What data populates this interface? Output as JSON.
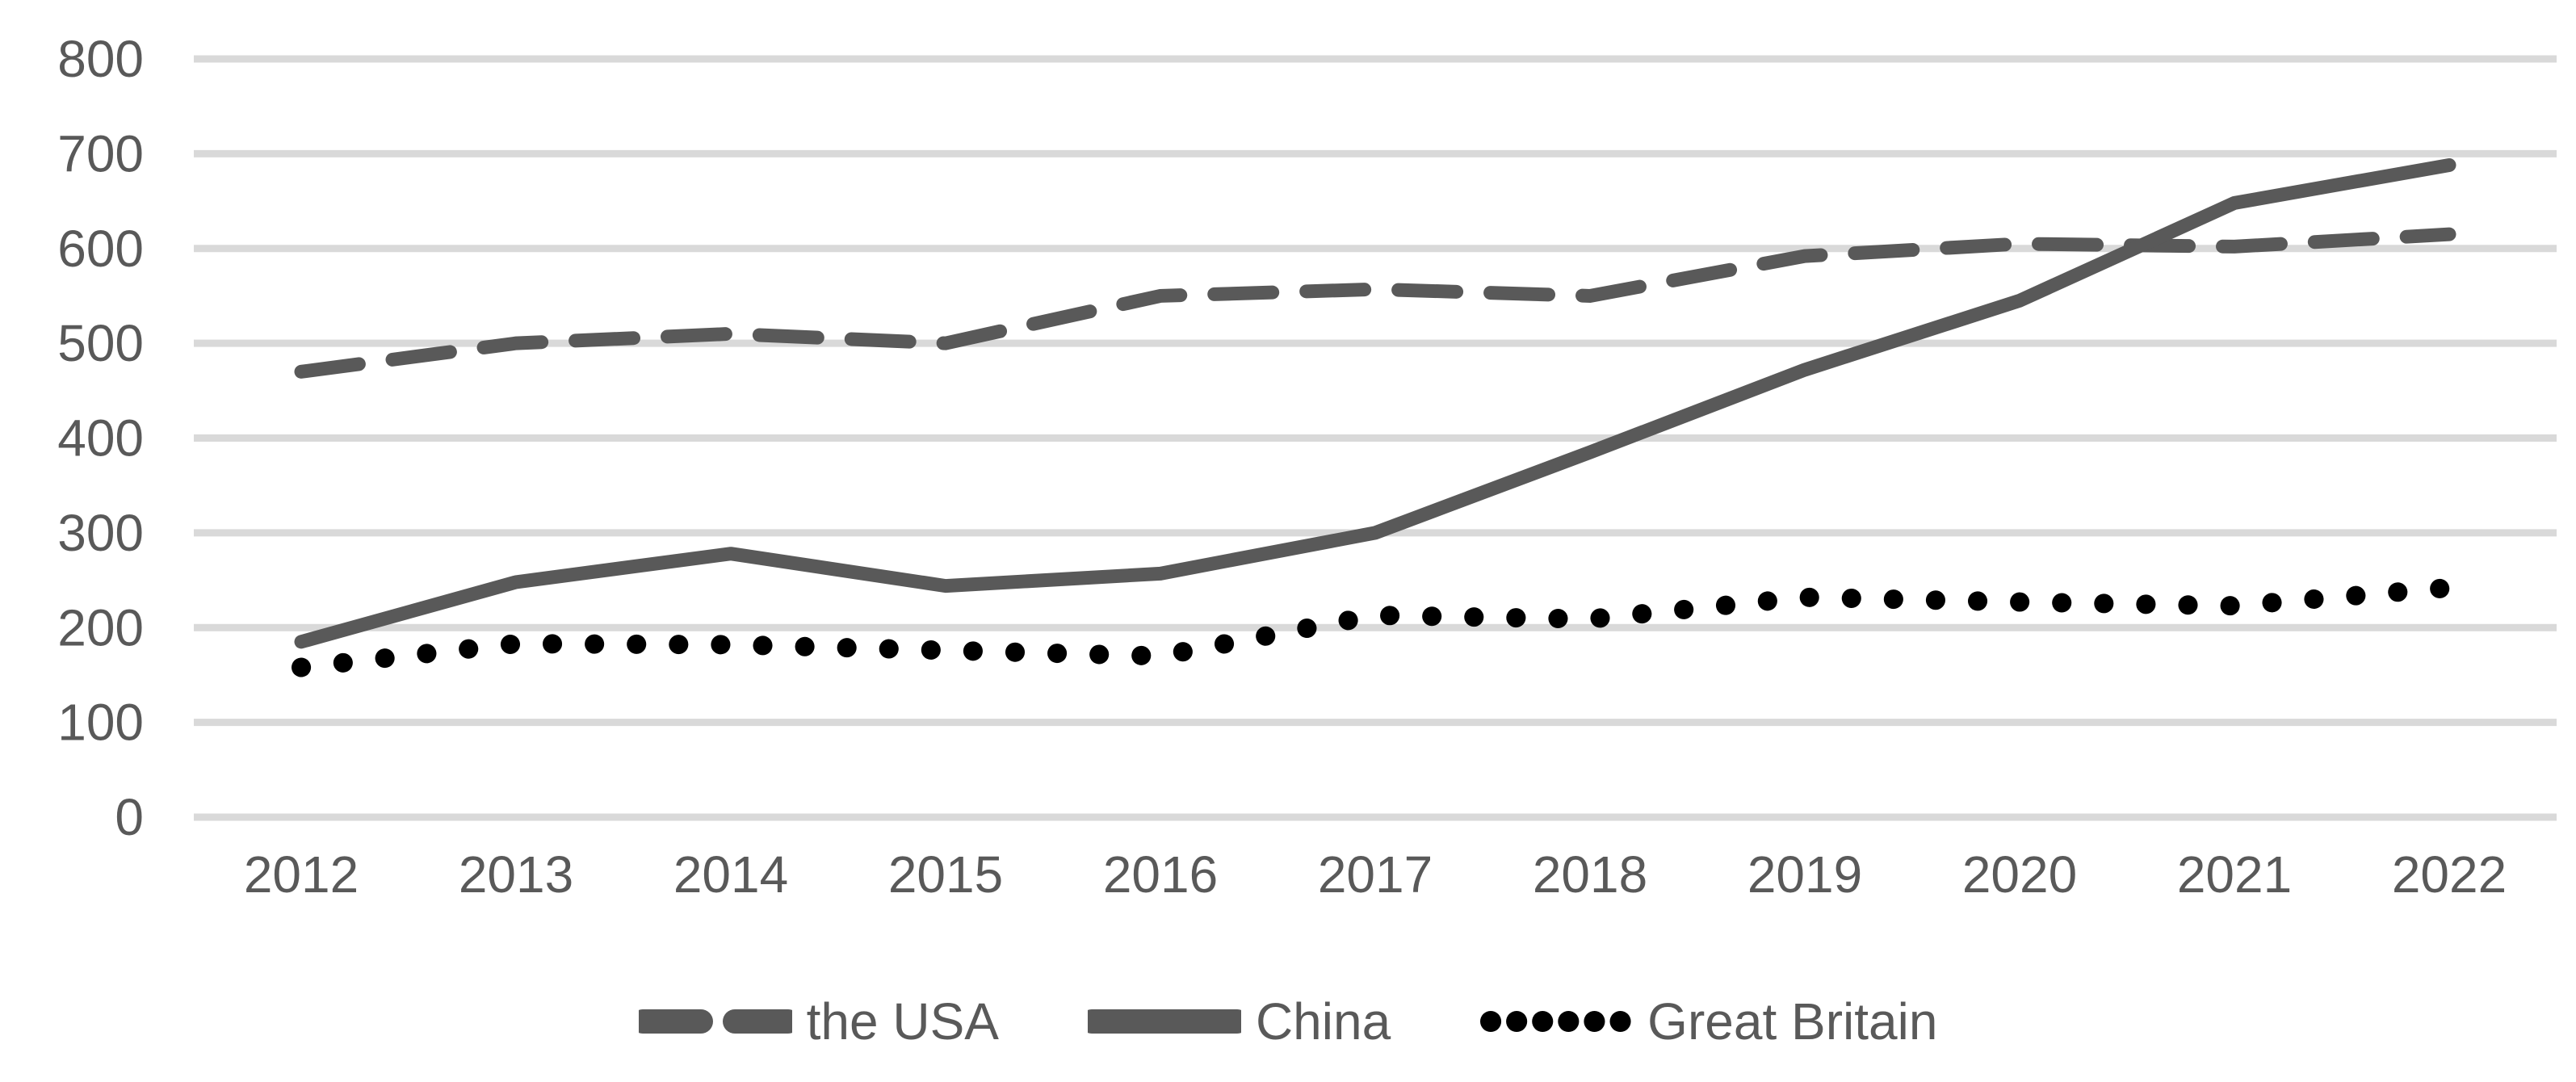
{
  "chart_data": {
    "type": "line",
    "title": "",
    "xlabel": "",
    "ylabel": "",
    "categories": [
      "2012",
      "2013",
      "2014",
      "2015",
      "2016",
      "2017",
      "2018",
      "2019",
      "2020",
      "2021",
      "2022"
    ],
    "series": [
      {
        "name": "the USA",
        "style": "dashed",
        "color": "#595959",
        "values": [
          470,
          500,
          510,
          500,
          550,
          557,
          550,
          592,
          605,
          602,
          615
        ]
      },
      {
        "name": "China",
        "style": "solid",
        "color": "#595959",
        "values": [
          185,
          248,
          278,
          244,
          257,
          300,
          385,
          472,
          545,
          648,
          688
        ]
      },
      {
        "name": "Great Britain",
        "style": "dotted",
        "color": "#000000",
        "values": [
          158,
          183,
          182,
          176,
          170,
          213,
          209,
          232,
          227,
          223,
          242
        ]
      }
    ],
    "ylim": [
      0,
      800
    ],
    "ytick_step": 100,
    "yticks": [
      "0",
      "100",
      "200",
      "300",
      "400",
      "500",
      "600",
      "700",
      "800"
    ],
    "grid": "horizontal",
    "gridline_color": "#d9d9d9",
    "axis_text_color": "#595959",
    "legend_position": "bottom"
  }
}
